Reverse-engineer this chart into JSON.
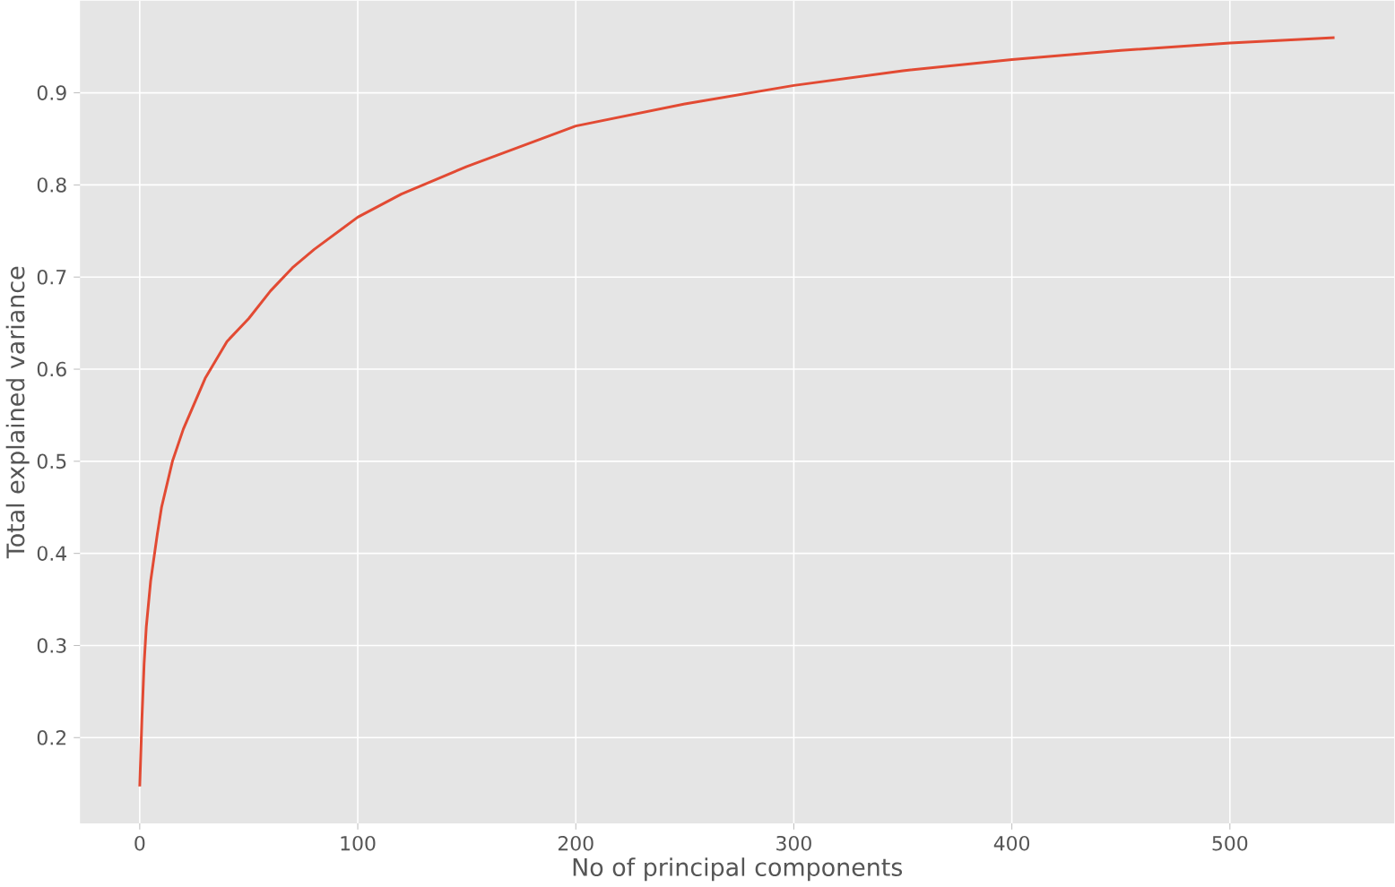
{
  "chart_data": {
    "type": "line",
    "xlabel": "No of principal components",
    "ylabel": "Total explained variance",
    "x": [
      0,
      1,
      2,
      3,
      5,
      8,
      10,
      15,
      20,
      30,
      40,
      50,
      60,
      70,
      80,
      100,
      120,
      150,
      200,
      250,
      300,
      350,
      400,
      450,
      500,
      548
    ],
    "series": [
      {
        "color": "#e24a33",
        "values": [
          0.147,
          0.22,
          0.28,
          0.32,
          0.37,
          0.42,
          0.45,
          0.5,
          0.535,
          0.59,
          0.63,
          0.655,
          0.685,
          0.71,
          0.73,
          0.765,
          0.79,
          0.82,
          0.864,
          0.888,
          0.908,
          0.924,
          0.936,
          0.946,
          0.954,
          0.96
        ]
      }
    ],
    "xlim": [
      -27.4,
      575.4
    ],
    "ylim": [
      0.107,
      1.0
    ],
    "xticks": [
      0,
      100,
      200,
      300,
      400,
      500
    ],
    "yticks": [
      0.2,
      0.3,
      0.4,
      0.5,
      0.6,
      0.7,
      0.8,
      0.9
    ],
    "grid": true,
    "marker": "none",
    "line_style": "solid"
  }
}
